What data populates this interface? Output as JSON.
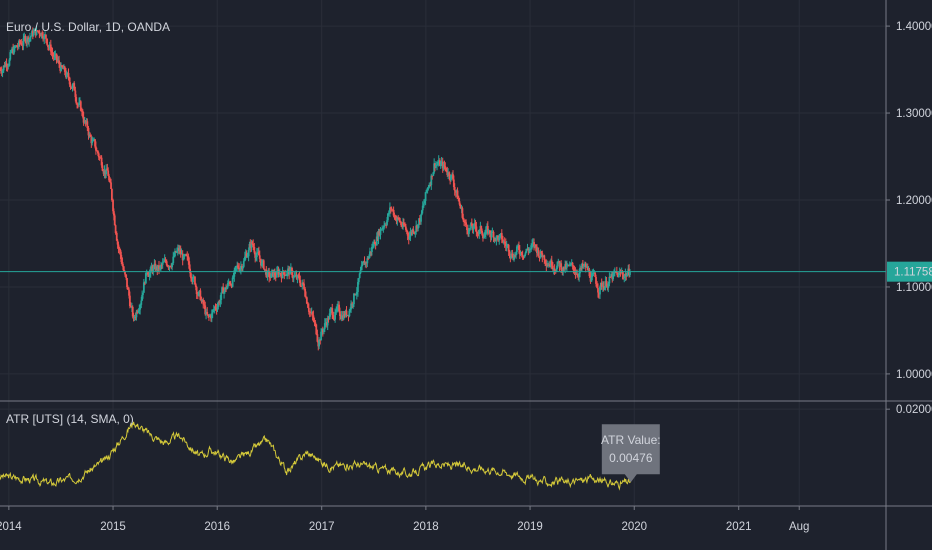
{
  "main_pane": {
    "title": "Euro / U.S. Dollar, 1D, OANDA",
    "last_price": "1.11758"
  },
  "atr_pane": {
    "title": "ATR [UTS] (14, SMA, 0)",
    "annotation": {
      "label": "ATR Value:",
      "value": "0.00476"
    }
  },
  "colors": {
    "up": "#26a69a",
    "down": "#ef5350",
    "atr": "#d4c93a",
    "background": "#1e222d",
    "last_price": "#26a69a"
  },
  "chart_data": [
    {
      "type": "candlestick",
      "title": "Euro / U.S. Dollar, 1D, OANDA",
      "x_axis": {
        "range": [
          "2013-12-01",
          "2022-06-01"
        ],
        "tick_labels": [
          "2014",
          "2015",
          "2016",
          "2017",
          "2018",
          "2019",
          "2020",
          "2021",
          "Aug"
        ],
        "tick_dates": [
          "2014-01-01",
          "2015-01-01",
          "2016-01-01",
          "2017-01-01",
          "2018-01-01",
          "2019-01-01",
          "2020-01-01",
          "2021-01-01",
          "2021-08-01"
        ]
      },
      "y_axis": {
        "range": [
          0.97,
          1.43
        ],
        "tick_labels": [
          "1.40000",
          "1.30000",
          "1.20000",
          "1.10000",
          "1.00000"
        ],
        "ticks": [
          1.4,
          1.3,
          1.2,
          1.1,
          1.0
        ]
      },
      "last_price": 1.11758,
      "price_path": [
        [
          "2013-12-01",
          1.35
        ],
        [
          "2014-01-15",
          1.37
        ],
        [
          "2014-03-15",
          1.39
        ],
        [
          "2014-05-01",
          1.395
        ],
        [
          "2014-06-15",
          1.36
        ],
        [
          "2014-08-15",
          1.33
        ],
        [
          "2014-10-15",
          1.27
        ],
        [
          "2014-12-15",
          1.23
        ],
        [
          "2015-01-20",
          1.15
        ],
        [
          "2015-03-15",
          1.06
        ],
        [
          "2015-05-01",
          1.12
        ],
        [
          "2015-06-15",
          1.12
        ],
        [
          "2015-08-20",
          1.14
        ],
        [
          "2015-10-01",
          1.12
        ],
        [
          "2015-12-01",
          1.06
        ],
        [
          "2016-01-15",
          1.09
        ],
        [
          "2016-03-15",
          1.12
        ],
        [
          "2016-05-01",
          1.15
        ],
        [
          "2016-07-01",
          1.11
        ],
        [
          "2016-09-01",
          1.12
        ],
        [
          "2016-11-01",
          1.1
        ],
        [
          "2016-12-20",
          1.04
        ],
        [
          "2017-02-01",
          1.07
        ],
        [
          "2017-04-01",
          1.07
        ],
        [
          "2017-05-15",
          1.11
        ],
        [
          "2017-07-15",
          1.16
        ],
        [
          "2017-09-01",
          1.19
        ],
        [
          "2017-11-01",
          1.16
        ],
        [
          "2017-12-15",
          1.18
        ],
        [
          "2018-02-01",
          1.245
        ],
        [
          "2018-04-01",
          1.23
        ],
        [
          "2018-05-20",
          1.17
        ],
        [
          "2018-07-01",
          1.165
        ],
        [
          "2018-09-01",
          1.16
        ],
        [
          "2018-11-01",
          1.14
        ],
        [
          "2019-01-15",
          1.145
        ],
        [
          "2019-03-15",
          1.13
        ],
        [
          "2019-05-15",
          1.12
        ],
        [
          "2019-07-15",
          1.12
        ],
        [
          "2019-09-01",
          1.1
        ],
        [
          "2019-10-15",
          1.11
        ],
        [
          "2019-12-20",
          1.11758
        ]
      ]
    },
    {
      "type": "line",
      "title": "ATR [UTS] (14, SMA, 0)",
      "y_axis": {
        "range": [
          0.0,
          0.0215
        ],
        "tick_labels": [
          "0.02000"
        ],
        "ticks": [
          0.02
        ]
      },
      "series": [
        {
          "name": "ATR [UTS] (14, SMA, 0)",
          "points": [
            [
              "2013-12-01",
              0.006
            ],
            [
              "2014-03-01",
              0.0055
            ],
            [
              "2014-06-01",
              0.0045
            ],
            [
              "2014-09-01",
              0.006
            ],
            [
              "2014-12-01",
              0.009
            ],
            [
              "2015-01-20",
              0.013
            ],
            [
              "2015-03-15",
              0.0175
            ],
            [
              "2015-05-01",
              0.015
            ],
            [
              "2015-07-01",
              0.013
            ],
            [
              "2015-08-25",
              0.0145
            ],
            [
              "2015-11-01",
              0.01
            ],
            [
              "2015-12-10",
              0.0115
            ],
            [
              "2016-03-01",
              0.009
            ],
            [
              "2016-06-25",
              0.0135
            ],
            [
              "2016-09-01",
              0.007
            ],
            [
              "2016-11-10",
              0.011
            ],
            [
              "2017-02-01",
              0.008
            ],
            [
              "2017-05-01",
              0.0085
            ],
            [
              "2017-08-01",
              0.0075
            ],
            [
              "2017-11-01",
              0.0065
            ],
            [
              "2018-02-01",
              0.0085
            ],
            [
              "2018-05-01",
              0.008
            ],
            [
              "2018-08-15",
              0.0075
            ],
            [
              "2018-11-01",
              0.0065
            ],
            [
              "2019-02-01",
              0.005
            ],
            [
              "2019-05-01",
              0.0045
            ],
            [
              "2019-08-01",
              0.0055
            ],
            [
              "2019-10-15",
              0.0045
            ],
            [
              "2019-12-20",
              0.00476
            ]
          ]
        }
      ],
      "annotation": {
        "label": "ATR Value:",
        "value": 0.00476,
        "date": "2019-12-20"
      }
    }
  ]
}
